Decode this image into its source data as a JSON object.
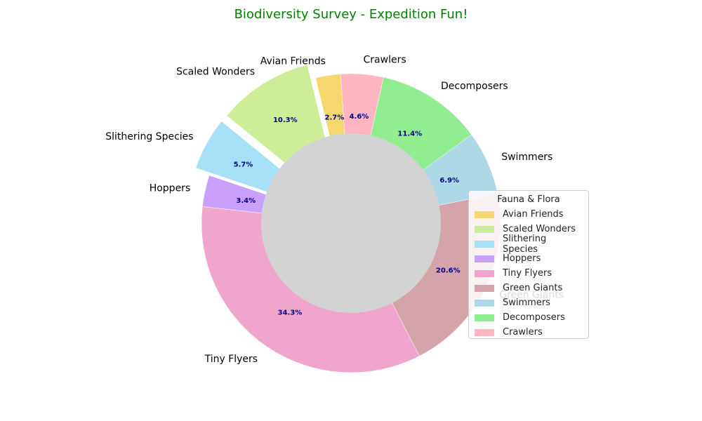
{
  "chart_data": {
    "type": "pie",
    "title": "Biodiversity Survey - Expedition Fun!",
    "legend_title": "Fauna & Flora",
    "legend_position": "center-right",
    "donut": true,
    "center_color": "#d3d3d3",
    "title_color": "#008000",
    "percent_label_color": "#00008b",
    "categories": [
      "Avian Friends",
      "Scaled Wonders",
      "Slithering Species",
      "Hoppers",
      "Tiny Flyers",
      "Green Giants",
      "Swimmers",
      "Decomposers",
      "Crawlers"
    ],
    "values": [
      2.7,
      10.3,
      5.7,
      3.4,
      34.3,
      20.6,
      6.9,
      11.4,
      4.6
    ],
    "percent_labels": [
      "2.7%",
      "10.3%",
      "5.7%",
      "3.4%",
      "34.3%",
      "20.6%",
      "6.9%",
      "11.4%",
      "4.6%"
    ],
    "colors": [
      "#f5d76e",
      "#cdee96",
      "#a6e1f7",
      "#c9a0fc",
      "#f0a6cc",
      "#d5a3aa",
      "#add8e6",
      "#90ee90",
      "#ffb6c1"
    ],
    "exploded": [
      "Scaled Wonders",
      "Slithering Species"
    ]
  }
}
